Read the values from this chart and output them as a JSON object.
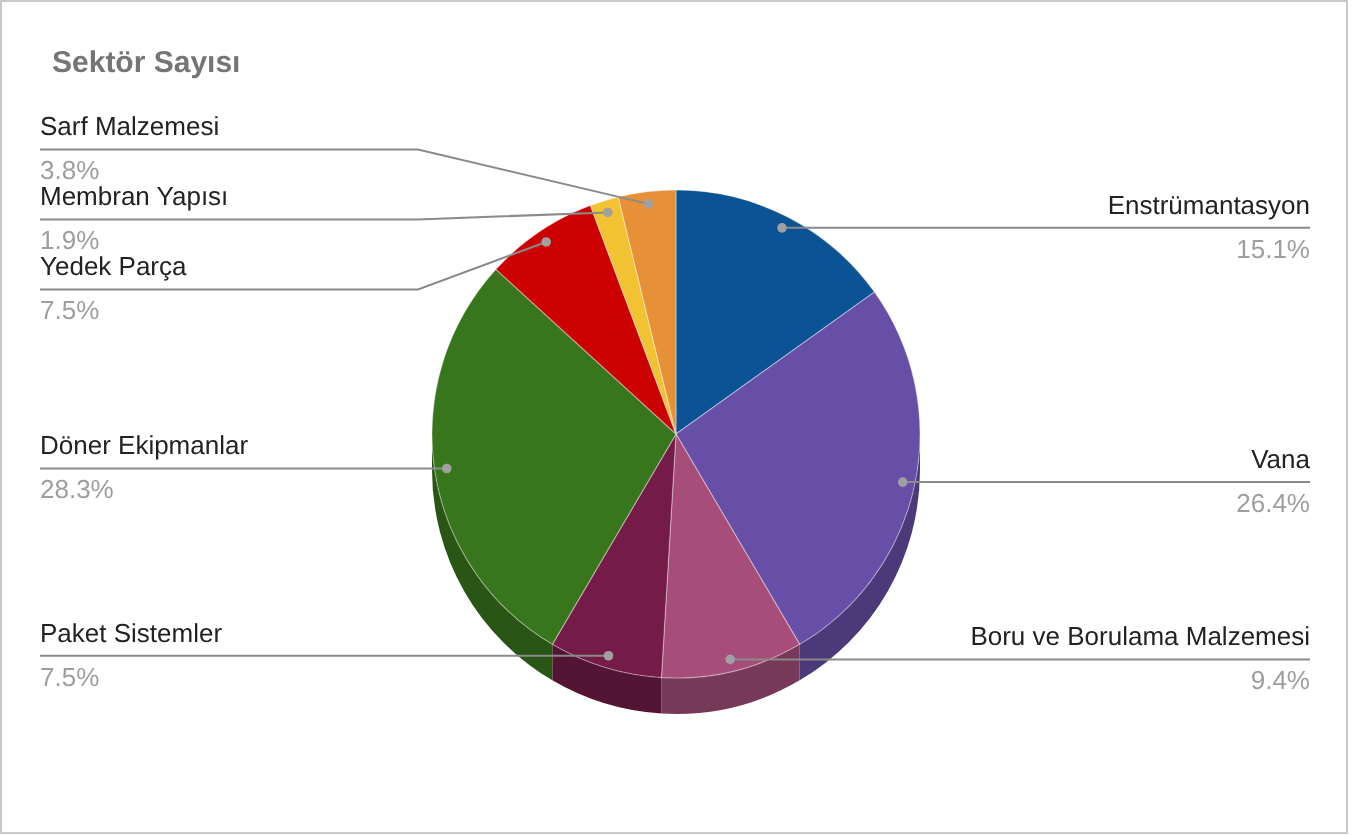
{
  "chart_data": {
    "type": "pie",
    "title": "Sektör Sayısı",
    "categories": [
      "Enstrümantasyon",
      "Vana",
      "Boru ve Borulama Malzemesi",
      "Paket Sistemler",
      "Döner Ekipmanlar",
      "Yedek Parça",
      "Membran Yapısı",
      "Sarf Malzemesi"
    ],
    "values": [
      15.1,
      26.4,
      9.4,
      7.5,
      28.3,
      7.5,
      1.9,
      3.8
    ],
    "colors": [
      "#0b5394",
      "#674ea7",
      "#a64d79",
      "#741b47",
      "#38761d",
      "#cc0000",
      "#f1c232",
      "#e69138"
    ],
    "value_labels": [
      "15.1%",
      "26.4%",
      "9.4%",
      "7.5%",
      "28.3%",
      "7.5%",
      "1.9%",
      "3.8%"
    ]
  }
}
